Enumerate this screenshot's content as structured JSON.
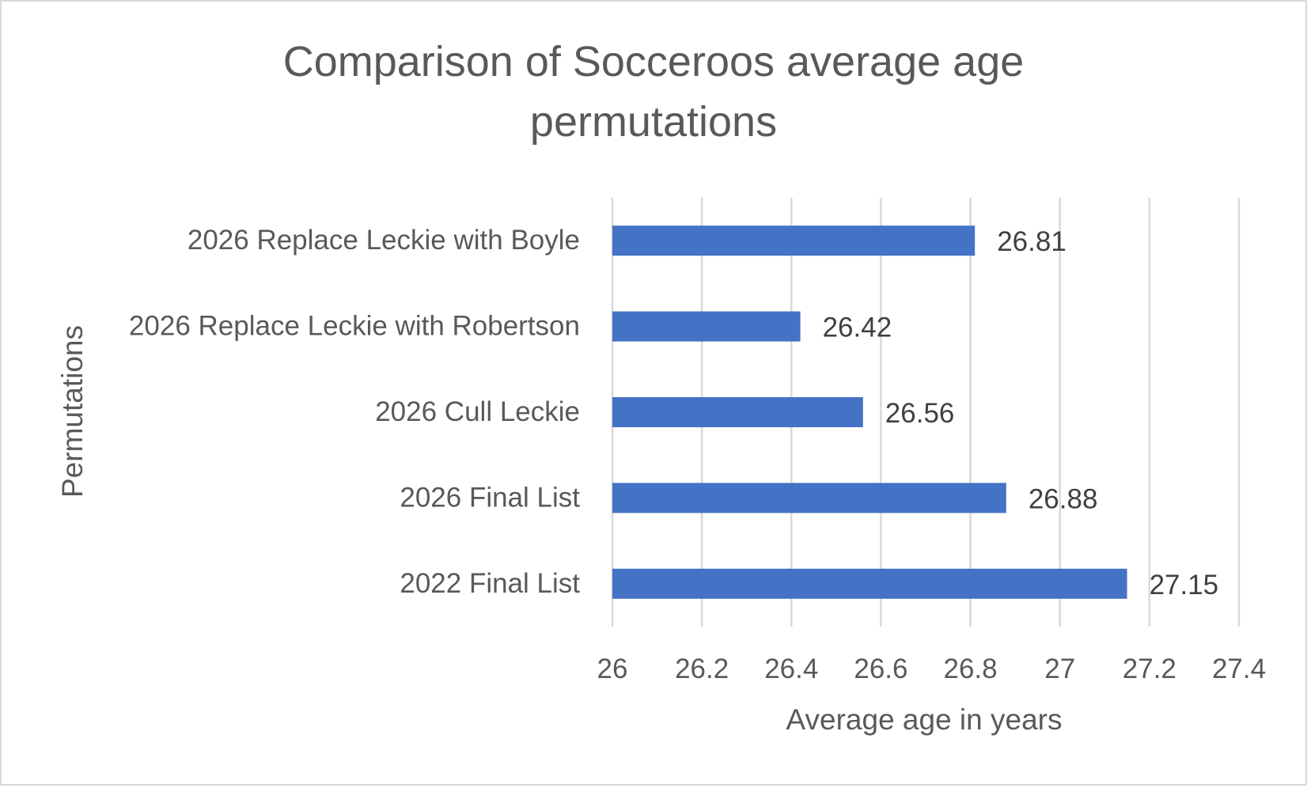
{
  "chart_data": {
    "type": "bar",
    "orientation": "horizontal",
    "title_lines": [
      "Comparison of Socceroos average age",
      "permutations"
    ],
    "xlabel": "Average age in years",
    "ylabel": "Permutations",
    "categories": [
      "2026 Replace Leckie with Boyle",
      "2026 Replace Leckie with Robertson",
      "2026 Cull Leckie",
      "2026 Final List",
      "2022 Final List"
    ],
    "values": [
      26.81,
      26.42,
      26.56,
      26.88,
      27.15
    ],
    "value_labels": [
      "26.81",
      "26.42",
      "26.56",
      "26.88",
      "27.15"
    ],
    "xlim": [
      26,
      27.4
    ],
    "x_ticks": [
      26,
      26.2,
      26.4,
      26.6,
      26.8,
      27,
      27.2,
      27.4
    ],
    "x_tick_labels": [
      "26",
      "26.2",
      "26.4",
      "26.6",
      "26.8",
      "27",
      "27.2",
      "27.4"
    ],
    "grid": "vertical",
    "legend": "none",
    "colors": {
      "bar": "#4472c4",
      "grid": "#d9d9d9",
      "title": "#595959",
      "axis_text": "#595959",
      "data_label": "#404040"
    }
  }
}
